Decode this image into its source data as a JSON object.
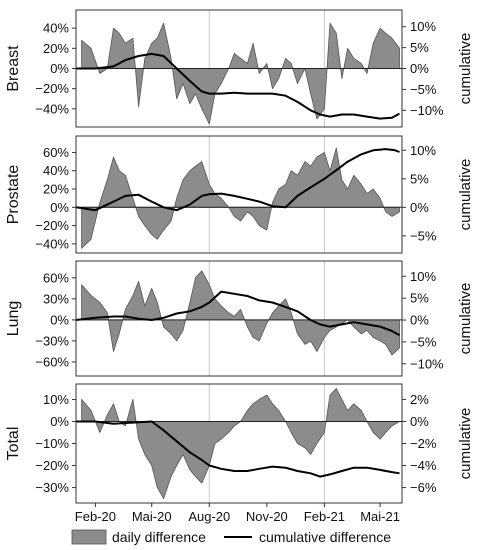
{
  "legend": {
    "daily_label": "daily difference",
    "cumulative_label": "cumulative difference"
  },
  "colors": {
    "daily_fill": "#8c8c8c",
    "daily_stroke": "#555555",
    "cumulative_line": "#000000",
    "frame": "#333333",
    "vline": "#c8c8c8",
    "zero_line": "#222222"
  },
  "chart_data": [
    {
      "type": "area",
      "panel_label": "Breast",
      "right_axis_label": "cumulative",
      "x_axis": {
        "type": "date",
        "range": [
          "2020-01-01",
          "2021-06-05"
        ],
        "tick_values": [
          "2020-02-01",
          "2020-05-01",
          "2020-08-01",
          "2020-11-01",
          "2021-02-01",
          "2021-05-01"
        ],
        "tick_labels": [
          "Feb-20",
          "Mai-20",
          "Aug-20",
          "Nov-20",
          "Feb-21",
          "Mai-21"
        ],
        "vlines": [
          "2020-08-01",
          "2021-02-01"
        ]
      },
      "left_axis": {
        "ticks": [
          -40,
          -20,
          0,
          20,
          40
        ],
        "tick_labels": [
          "−40%",
          "−20%",
          "0%",
          "20%",
          "40%"
        ],
        "ylim": [
          -58,
          58
        ]
      },
      "right_axis": {
        "ticks": [
          -10,
          -5,
          0,
          5,
          10
        ],
        "tick_labels": [
          "−10%",
          "−5%",
          "0%",
          "5%",
          "10%"
        ],
        "ylim": [
          -14,
          14
        ]
      },
      "series": [
        {
          "name": "daily difference",
          "kind": "area",
          "x": [
            "2020-01-10",
            "2020-01-25",
            "2020-02-08",
            "2020-02-20",
            "2020-03-01",
            "2020-03-10",
            "2020-03-20",
            "2020-04-01",
            "2020-04-10",
            "2020-04-20",
            "2020-05-01",
            "2020-05-10",
            "2020-05-20",
            "2020-06-01",
            "2020-06-10",
            "2020-06-20",
            "2020-07-01",
            "2020-07-10",
            "2020-07-20",
            "2020-08-01",
            "2020-08-10",
            "2020-08-20",
            "2020-09-01",
            "2020-09-10",
            "2020-09-20",
            "2020-10-01",
            "2020-10-10",
            "2020-10-20",
            "2020-11-01",
            "2020-11-10",
            "2020-11-20",
            "2020-12-01",
            "2020-12-10",
            "2020-12-20",
            "2021-01-01",
            "2021-01-10",
            "2021-01-20",
            "2021-02-01",
            "2021-02-10",
            "2021-02-20",
            "2021-03-01",
            "2021-03-10",
            "2021-03-20",
            "2021-04-01",
            "2021-04-10",
            "2021-04-20",
            "2021-05-01",
            "2021-05-10",
            "2021-05-20",
            "2021-06-01"
          ],
          "y": [
            28,
            20,
            -5,
            0,
            40,
            35,
            25,
            30,
            -38,
            10,
            25,
            30,
            45,
            10,
            -30,
            -15,
            -35,
            -25,
            -40,
            -55,
            -25,
            -15,
            0,
            15,
            10,
            5,
            25,
            -5,
            5,
            -20,
            -10,
            10,
            5,
            -15,
            0,
            -25,
            -50,
            -40,
            45,
            35,
            -10,
            20,
            10,
            5,
            -5,
            25,
            40,
            35,
            30,
            20
          ]
        },
        {
          "name": "cumulative difference",
          "kind": "line",
          "x": [
            "2020-01-01",
            "2020-02-01",
            "2020-03-01",
            "2020-03-20",
            "2020-04-10",
            "2020-05-01",
            "2020-05-20",
            "2020-06-10",
            "2020-07-01",
            "2020-07-20",
            "2020-08-01",
            "2020-08-20",
            "2020-09-10",
            "2020-10-01",
            "2020-10-20",
            "2020-11-10",
            "2020-12-01",
            "2020-12-20",
            "2021-01-10",
            "2021-01-25",
            "2021-02-10",
            "2021-03-01",
            "2021-03-20",
            "2021-04-10",
            "2021-05-01",
            "2021-05-20",
            "2021-06-01"
          ],
          "y": [
            0,
            0,
            0.5,
            2,
            3,
            3.5,
            3,
            0,
            -3,
            -5.5,
            -6,
            -6,
            -5.8,
            -6,
            -6,
            -6,
            -6.5,
            -8,
            -10,
            -11,
            -11.5,
            -11,
            -11,
            -11.5,
            -12,
            -11.8,
            -10.8
          ]
        }
      ]
    },
    {
      "type": "area",
      "panel_label": "Prostate",
      "right_axis_label": "cumulative",
      "x_axis": {
        "type": "date",
        "range": [
          "2020-01-01",
          "2021-06-05"
        ],
        "tick_values": [
          "2020-02-01",
          "2020-05-01",
          "2020-08-01",
          "2020-11-01",
          "2021-02-01",
          "2021-05-01"
        ],
        "tick_labels": [
          "Feb-20",
          "Mai-20",
          "Aug-20",
          "Nov-20",
          "Feb-21",
          "Mai-21"
        ],
        "vlines": [
          "2020-08-01",
          "2021-02-01"
        ]
      },
      "left_axis": {
        "ticks": [
          -40,
          -20,
          0,
          20,
          40,
          60
        ],
        "tick_labels": [
          "−40%",
          "−20%",
          "0%",
          "20%",
          "40%",
          "60%"
        ],
        "ylim": [
          -50,
          78
        ]
      },
      "right_axis": {
        "ticks": [
          -5,
          0,
          5,
          10
        ],
        "tick_labels": [
          "−5%",
          "0%",
          "5%",
          "10%"
        ],
        "ylim": [
          -8,
          12.5
        ]
      },
      "series": [
        {
          "name": "daily difference",
          "kind": "area",
          "x": [
            "2020-01-10",
            "2020-01-25",
            "2020-02-08",
            "2020-02-20",
            "2020-03-01",
            "2020-03-10",
            "2020-03-20",
            "2020-04-01",
            "2020-04-10",
            "2020-04-20",
            "2020-05-01",
            "2020-05-10",
            "2020-05-20",
            "2020-06-01",
            "2020-06-10",
            "2020-06-20",
            "2020-07-01",
            "2020-07-10",
            "2020-07-20",
            "2020-08-01",
            "2020-08-10",
            "2020-08-20",
            "2020-09-01",
            "2020-09-10",
            "2020-09-20",
            "2020-10-01",
            "2020-10-10",
            "2020-10-20",
            "2020-11-01",
            "2020-11-10",
            "2020-11-20",
            "2020-12-01",
            "2020-12-10",
            "2020-12-20",
            "2021-01-01",
            "2021-01-10",
            "2021-01-20",
            "2021-02-01",
            "2021-02-10",
            "2021-02-20",
            "2021-03-01",
            "2021-03-10",
            "2021-03-20",
            "2021-04-01",
            "2021-04-10",
            "2021-04-20",
            "2021-05-01",
            "2021-05-10",
            "2021-05-20",
            "2021-06-01"
          ],
          "y": [
            -45,
            -35,
            5,
            30,
            55,
            40,
            35,
            10,
            -10,
            -20,
            -30,
            -35,
            -25,
            -15,
            10,
            30,
            40,
            45,
            50,
            25,
            15,
            10,
            0,
            -10,
            -15,
            -5,
            -10,
            -20,
            -25,
            5,
            20,
            25,
            40,
            35,
            50,
            45,
            55,
            60,
            40,
            65,
            30,
            20,
            35,
            25,
            15,
            20,
            10,
            -5,
            -10,
            -5
          ]
        },
        {
          "name": "cumulative difference",
          "kind": "line",
          "x": [
            "2020-01-01",
            "2020-02-01",
            "2020-03-01",
            "2020-03-20",
            "2020-04-10",
            "2020-05-01",
            "2020-05-20",
            "2020-06-10",
            "2020-07-01",
            "2020-07-20",
            "2020-08-01",
            "2020-08-20",
            "2020-09-10",
            "2020-10-01",
            "2020-10-20",
            "2020-11-10",
            "2020-12-01",
            "2020-12-20",
            "2021-01-10",
            "2021-02-01",
            "2021-02-20",
            "2021-03-10",
            "2021-04-01",
            "2021-04-20",
            "2021-05-10",
            "2021-05-25",
            "2021-06-01"
          ],
          "y": [
            0,
            -0.5,
            1,
            2,
            2.2,
            1,
            0,
            -0.5,
            0.5,
            2,
            2.3,
            2.4,
            2,
            1.5,
            1,
            0.2,
            0,
            2,
            3.5,
            5,
            6.5,
            8,
            9.3,
            10,
            10.2,
            10,
            9.7
          ]
        }
      ]
    },
    {
      "type": "area",
      "panel_label": "Lung",
      "right_axis_label": "cumulative",
      "x_axis": {
        "type": "date",
        "range": [
          "2020-01-01",
          "2021-06-05"
        ],
        "tick_values": [
          "2020-02-01",
          "2020-05-01",
          "2020-08-01",
          "2020-11-01",
          "2021-02-01",
          "2021-05-01"
        ],
        "tick_labels": [
          "Feb-20",
          "Mai-20",
          "Aug-20",
          "Nov-20",
          "Feb-21",
          "Mai-21"
        ],
        "vlines": [
          "2020-08-01",
          "2021-02-01"
        ]
      },
      "left_axis": {
        "ticks": [
          -60,
          -30,
          0,
          30,
          60
        ],
        "tick_labels": [
          "−60%",
          "−30%",
          "0%",
          "30%",
          "60%"
        ],
        "ylim": [
          -80,
          84
        ]
      },
      "right_axis": {
        "ticks": [
          -10,
          -5,
          0,
          5,
          10
        ],
        "tick_labels": [
          "−10%",
          "−5%",
          "0%",
          "5%",
          "10%"
        ],
        "ylim": [
          -12.8,
          13.5
        ]
      },
      "series": [
        {
          "name": "daily difference",
          "kind": "area",
          "x": [
            "2020-01-10",
            "2020-01-25",
            "2020-02-08",
            "2020-02-20",
            "2020-03-01",
            "2020-03-10",
            "2020-03-20",
            "2020-04-01",
            "2020-04-10",
            "2020-04-20",
            "2020-05-01",
            "2020-05-10",
            "2020-05-20",
            "2020-06-01",
            "2020-06-10",
            "2020-06-20",
            "2020-07-01",
            "2020-07-10",
            "2020-07-20",
            "2020-08-01",
            "2020-08-10",
            "2020-08-20",
            "2020-09-01",
            "2020-09-10",
            "2020-09-20",
            "2020-10-01",
            "2020-10-10",
            "2020-10-20",
            "2020-11-01",
            "2020-11-10",
            "2020-11-20",
            "2020-12-01",
            "2020-12-10",
            "2020-12-20",
            "2021-01-01",
            "2021-01-10",
            "2021-01-20",
            "2021-02-01",
            "2021-02-10",
            "2021-02-20",
            "2021-03-01",
            "2021-03-10",
            "2021-03-20",
            "2021-04-01",
            "2021-04-10",
            "2021-04-20",
            "2021-05-01",
            "2021-05-10",
            "2021-05-20",
            "2021-06-01"
          ],
          "y": [
            50,
            35,
            25,
            10,
            -45,
            -20,
            15,
            35,
            55,
            20,
            45,
            25,
            -10,
            -20,
            -30,
            -15,
            25,
            60,
            70,
            50,
            30,
            20,
            10,
            5,
            15,
            -10,
            -25,
            -30,
            -5,
            10,
            20,
            30,
            10,
            -20,
            -35,
            -30,
            -45,
            -25,
            -15,
            -10,
            -5,
            0,
            -10,
            -20,
            -15,
            -25,
            -30,
            -35,
            -50,
            -40
          ]
        },
        {
          "name": "cumulative difference",
          "kind": "line",
          "x": [
            "2020-01-01",
            "2020-02-01",
            "2020-03-01",
            "2020-03-20",
            "2020-04-10",
            "2020-05-01",
            "2020-05-20",
            "2020-06-10",
            "2020-07-01",
            "2020-07-20",
            "2020-08-01",
            "2020-08-20",
            "2020-09-10",
            "2020-10-01",
            "2020-10-20",
            "2020-11-10",
            "2020-12-01",
            "2020-12-20",
            "2021-01-10",
            "2021-01-25",
            "2021-02-10",
            "2021-03-01",
            "2021-03-20",
            "2021-04-10",
            "2021-05-01",
            "2021-05-20",
            "2021-06-01"
          ],
          "y": [
            0,
            0.5,
            0.8,
            0.8,
            0.3,
            0,
            0.5,
            1.5,
            2,
            3,
            4,
            6.5,
            6,
            5.5,
            4.5,
            4,
            3,
            2,
            0,
            -1,
            -1.5,
            -1,
            -0.5,
            -1,
            -1.5,
            -2.5,
            -3.5
          ]
        }
      ]
    },
    {
      "type": "area",
      "panel_label": "Total",
      "right_axis_label": "cumulative",
      "x_axis": {
        "type": "date",
        "range": [
          "2020-01-01",
          "2021-06-05"
        ],
        "tick_values": [
          "2020-02-01",
          "2020-05-01",
          "2020-08-01",
          "2020-11-01",
          "2021-02-01",
          "2021-05-01"
        ],
        "tick_labels": [
          "Feb-20",
          "Mai-20",
          "Aug-20",
          "Nov-20",
          "Feb-21",
          "Mai-21"
        ],
        "vlines": [
          "2020-08-01",
          "2021-02-01"
        ]
      },
      "left_axis": {
        "ticks": [
          -30,
          -20,
          -10,
          0,
          10
        ],
        "tick_labels": [
          "−30%",
          "−20%",
          "−10%",
          "0%",
          "10%"
        ],
        "ylim": [
          -37,
          17
        ]
      },
      "right_axis": {
        "ticks": [
          -6,
          -4,
          -2,
          0,
          2
        ],
        "tick_labels": [
          "−6%",
          "−4%",
          "−2%",
          "0%",
          "2%"
        ],
        "ylim": [
          -7.4,
          3.4
        ]
      },
      "series": [
        {
          "name": "daily difference",
          "kind": "area",
          "x": [
            "2020-01-10",
            "2020-01-25",
            "2020-02-08",
            "2020-02-20",
            "2020-03-01",
            "2020-03-10",
            "2020-03-20",
            "2020-04-01",
            "2020-04-10",
            "2020-04-20",
            "2020-05-01",
            "2020-05-10",
            "2020-05-20",
            "2020-06-01",
            "2020-06-10",
            "2020-06-20",
            "2020-07-01",
            "2020-07-10",
            "2020-07-20",
            "2020-08-01",
            "2020-08-10",
            "2020-08-20",
            "2020-09-01",
            "2020-09-10",
            "2020-09-20",
            "2020-10-01",
            "2020-10-10",
            "2020-10-20",
            "2020-11-01",
            "2020-11-10",
            "2020-11-20",
            "2020-12-01",
            "2020-12-10",
            "2020-12-20",
            "2021-01-01",
            "2021-01-10",
            "2021-01-20",
            "2021-02-01",
            "2021-02-10",
            "2021-02-20",
            "2021-03-01",
            "2021-03-10",
            "2021-03-20",
            "2021-04-01",
            "2021-04-10",
            "2021-04-20",
            "2021-05-01",
            "2021-05-10",
            "2021-05-20",
            "2021-06-01"
          ],
          "y": [
            10,
            5,
            -5,
            3,
            8,
            0,
            -2,
            10,
            -8,
            -15,
            -20,
            -30,
            -35,
            -25,
            -20,
            -15,
            -22,
            -25,
            -28,
            -20,
            -10,
            -8,
            -5,
            -2,
            0,
            5,
            8,
            10,
            12,
            8,
            5,
            0,
            -5,
            -10,
            -12,
            -15,
            -10,
            -5,
            12,
            15,
            10,
            5,
            8,
            5,
            0,
            -5,
            -8,
            -5,
            -2,
            0
          ]
        },
        {
          "name": "cumulative difference",
          "kind": "line",
          "x": [
            "2020-01-01",
            "2020-02-01",
            "2020-03-01",
            "2020-04-01",
            "2020-05-01",
            "2020-05-20",
            "2020-06-10",
            "2020-07-01",
            "2020-07-20",
            "2020-08-01",
            "2020-08-20",
            "2020-09-10",
            "2020-10-01",
            "2020-10-20",
            "2020-11-10",
            "2020-12-01",
            "2020-12-20",
            "2021-01-10",
            "2021-01-25",
            "2021-02-10",
            "2021-03-01",
            "2021-03-20",
            "2021-04-10",
            "2021-05-01",
            "2021-05-20",
            "2021-06-01"
          ],
          "y": [
            0,
            0,
            -0.2,
            -0.1,
            0,
            -0.8,
            -1.8,
            -2.8,
            -3.5,
            -4,
            -4.3,
            -4.5,
            -4.5,
            -4.3,
            -4.1,
            -4.2,
            -4.5,
            -4.7,
            -5,
            -4.8,
            -4.5,
            -4.2,
            -4.2,
            -4.4,
            -4.6,
            -4.7
          ]
        }
      ]
    }
  ]
}
